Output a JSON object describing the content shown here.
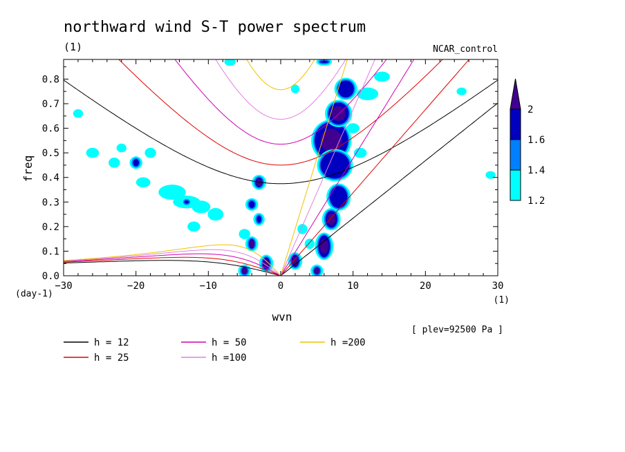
{
  "chart_data": {
    "type": "contour",
    "title": "northward wind S-T power spectrum",
    "subtitle_left": "(1)",
    "subtitle_right": "NCAR_control",
    "xlabel": "wvn",
    "ylabel": "freq",
    "x_unit": "(1)",
    "y_unit": "(day-1)",
    "xlim": [
      -30,
      30
    ],
    "ylim": [
      0.0,
      0.88
    ],
    "xticks": [
      -30,
      -20,
      -10,
      0,
      10,
      20,
      30
    ],
    "yticks": [
      0.0,
      0.1,
      0.2,
      0.3,
      0.4,
      0.5,
      0.6,
      0.7,
      0.8
    ],
    "note": "[ plev=92500 Pa ]",
    "colorbar": {
      "levels": [
        "1.2",
        "1.4",
        "1.6",
        "2"
      ],
      "colors": [
        "#00ffff",
        "#0080ff",
        "#0000c0",
        "#400090"
      ]
    },
    "curves": [
      {
        "label": "h = 12",
        "h": 12,
        "color": "#000000"
      },
      {
        "label": "h = 25",
        "h": 25,
        "color": "#e00000"
      },
      {
        "label": "h = 50",
        "h": 50,
        "color": "#d000b0"
      },
      {
        "label": "h =100",
        "h": 100,
        "color": "#e080e0"
      },
      {
        "label": "h =200",
        "h": 200,
        "color": "#f0c000"
      }
    ],
    "blobs": [
      {
        "x": 7,
        "y": 0.55,
        "rx": 2.5,
        "ry": 0.08,
        "level": 3
      },
      {
        "x": 7.5,
        "y": 0.45,
        "rx": 2.2,
        "ry": 0.06,
        "level": 2
      },
      {
        "x": 8,
        "y": 0.66,
        "rx": 1.6,
        "ry": 0.05,
        "level": 3
      },
      {
        "x": 9,
        "y": 0.76,
        "rx": 1.3,
        "ry": 0.04,
        "level": 2
      },
      {
        "x": 6,
        "y": 0.12,
        "rx": 1.0,
        "ry": 0.05,
        "level": 3
      },
      {
        "x": 7,
        "y": 0.23,
        "rx": 1.0,
        "ry": 0.04,
        "level": 3
      },
      {
        "x": 8,
        "y": 0.32,
        "rx": 1.4,
        "ry": 0.05,
        "level": 2
      },
      {
        "x": -3,
        "y": 0.38,
        "rx": 0.7,
        "ry": 0.025,
        "level": 3
      },
      {
        "x": -4,
        "y": 0.13,
        "rx": 0.6,
        "ry": 0.025,
        "level": 3
      },
      {
        "x": -4,
        "y": 0.29,
        "rx": 0.6,
        "ry": 0.02,
        "level": 2
      },
      {
        "x": -3,
        "y": 0.23,
        "rx": 0.5,
        "ry": 0.02,
        "level": 2
      },
      {
        "x": -2,
        "y": 0.05,
        "rx": 0.7,
        "ry": 0.03,
        "level": 3
      },
      {
        "x": 2,
        "y": 0.06,
        "rx": 0.7,
        "ry": 0.03,
        "level": 3
      },
      {
        "x": -5,
        "y": 0.02,
        "rx": 0.6,
        "ry": 0.02,
        "level": 3
      },
      {
        "x": 5,
        "y": 0.02,
        "rx": 0.6,
        "ry": 0.02,
        "level": 3
      },
      {
        "x": -20,
        "y": 0.46,
        "rx": 0.6,
        "ry": 0.02,
        "level": 2
      },
      {
        "x": -18,
        "y": 0.5,
        "rx": 0.5,
        "ry": 0.015,
        "level": 1
      },
      {
        "x": -15,
        "y": 0.34,
        "rx": 1.6,
        "ry": 0.025,
        "level": 1
      },
      {
        "x": -13,
        "y": 0.3,
        "rx": 1.6,
        "ry": 0.02,
        "level": 1
      },
      {
        "x": -11,
        "y": 0.28,
        "rx": 1.0,
        "ry": 0.02,
        "level": 1
      },
      {
        "x": -9,
        "y": 0.25,
        "rx": 0.8,
        "ry": 0.02,
        "level": 1
      },
      {
        "x": -13,
        "y": 0.3,
        "rx": 0.5,
        "ry": 0.012,
        "level": 2
      },
      {
        "x": -19,
        "y": 0.38,
        "rx": 0.7,
        "ry": 0.015,
        "level": 1
      },
      {
        "x": -23,
        "y": 0.46,
        "rx": 0.5,
        "ry": 0.015,
        "level": 1
      },
      {
        "x": -26,
        "y": 0.5,
        "rx": 0.6,
        "ry": 0.015,
        "level": 1
      },
      {
        "x": -28,
        "y": 0.66,
        "rx": 0.4,
        "ry": 0.012,
        "level": 1
      },
      {
        "x": -22,
        "y": 0.52,
        "rx": 0.4,
        "ry": 0.012,
        "level": 1
      },
      {
        "x": -12,
        "y": 0.2,
        "rx": 0.6,
        "ry": 0.015,
        "level": 1
      },
      {
        "x": -5,
        "y": 0.17,
        "rx": 0.5,
        "ry": 0.015,
        "level": 1
      },
      {
        "x": 3,
        "y": 0.19,
        "rx": 0.4,
        "ry": 0.015,
        "level": 1
      },
      {
        "x": 4,
        "y": 0.13,
        "rx": 0.4,
        "ry": 0.015,
        "level": 1
      },
      {
        "x": 12,
        "y": 0.74,
        "rx": 1.2,
        "ry": 0.02,
        "level": 1
      },
      {
        "x": 14,
        "y": 0.81,
        "rx": 0.8,
        "ry": 0.015,
        "level": 1
      },
      {
        "x": 11,
        "y": 0.5,
        "rx": 0.6,
        "ry": 0.015,
        "level": 1
      },
      {
        "x": 10,
        "y": 0.6,
        "rx": 0.6,
        "ry": 0.015,
        "level": 1
      },
      {
        "x": 6,
        "y": 0.87,
        "rx": 0.8,
        "ry": 0.01,
        "level": 2
      },
      {
        "x": -7,
        "y": 0.87,
        "rx": 0.5,
        "ry": 0.01,
        "level": 1
      },
      {
        "x": 2,
        "y": 0.76,
        "rx": 0.3,
        "ry": 0.012,
        "level": 1
      },
      {
        "x": 29,
        "y": 0.41,
        "rx": 0.4,
        "ry": 0.01,
        "level": 1
      },
      {
        "x": 25,
        "y": 0.75,
        "rx": 0.4,
        "ry": 0.01,
        "level": 1
      }
    ]
  }
}
